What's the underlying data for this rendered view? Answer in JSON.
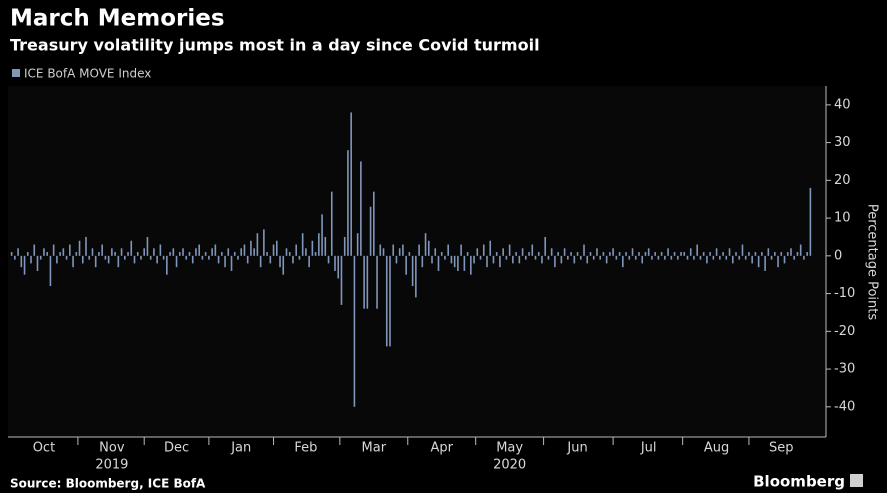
{
  "chart_data": {
    "type": "bar",
    "title": "March Memories",
    "subtitle": "Treasury volatility jumps most in a day since Covid turmoil",
    "y_label": "Percentage Points",
    "annotations": [
      "2019",
      "2020"
    ],
    "source": "Source: Bloomberg, ICE BofA",
    "brand": "Bloomberg",
    "ylim": [
      -48,
      45
    ],
    "yticks": [
      -40,
      -30,
      -20,
      -10,
      0,
      10,
      20,
      30,
      40
    ],
    "grid": false,
    "legend": "top-left",
    "categories": [
      null,
      null,
      null,
      null,
      null,
      null,
      null,
      null,
      null,
      null,
      "Oct",
      null,
      null,
      null,
      null,
      null,
      null,
      null,
      null,
      null,
      null,
      null,
      null,
      null,
      null,
      null,
      null,
      null,
      null,
      null,
      null,
      "Nov",
      null,
      null,
      null,
      null,
      null,
      null,
      null,
      null,
      null,
      null,
      null,
      null,
      null,
      null,
      null,
      null,
      null,
      null,
      null,
      "Dec",
      null,
      null,
      null,
      null,
      null,
      null,
      null,
      null,
      null,
      null,
      null,
      null,
      null,
      null,
      null,
      null,
      null,
      null,
      null,
      "Jan",
      null,
      null,
      null,
      null,
      null,
      null,
      null,
      null,
      null,
      null,
      null,
      null,
      null,
      null,
      null,
      null,
      null,
      null,
      null,
      "Feb",
      null,
      null,
      null,
      null,
      null,
      null,
      null,
      null,
      null,
      null,
      null,
      null,
      null,
      null,
      null,
      null,
      null,
      null,
      null,
      null,
      "Mar",
      null,
      null,
      null,
      null,
      null,
      null,
      null,
      null,
      null,
      null,
      null,
      null,
      null,
      null,
      null,
      null,
      null,
      null,
      null,
      null,
      "Apr",
      null,
      null,
      null,
      null,
      null,
      null,
      null,
      null,
      null,
      null,
      null,
      null,
      null,
      null,
      null,
      null,
      null,
      null,
      null,
      null,
      "May",
      null,
      null,
      null,
      null,
      null,
      null,
      null,
      null,
      null,
      null,
      null,
      null,
      null,
      null,
      null,
      null,
      null,
      null,
      null,
      null,
      "Jun",
      null,
      null,
      null,
      null,
      null,
      null,
      null,
      null,
      null,
      null,
      null,
      null,
      null,
      null,
      null,
      null,
      null,
      null,
      null,
      null,
      null,
      "Jul",
      null,
      null,
      null,
      null,
      null,
      null,
      null,
      null,
      null,
      null,
      null,
      null,
      null,
      null,
      null,
      null,
      null,
      null,
      null,
      null,
      "Aug",
      null,
      null,
      null,
      null,
      null,
      null,
      null,
      null,
      null,
      null,
      null,
      null,
      null,
      null,
      null,
      null,
      null,
      null,
      null,
      "Sep",
      null,
      null,
      null,
      null,
      null,
      null,
      null,
      null,
      null
    ],
    "series": [
      {
        "name": "ICE BofA MOVE Index",
        "color": "#8196bb",
        "values": [
          1,
          -1,
          2,
          -3,
          -5,
          1,
          -2,
          3,
          -4,
          -1,
          2,
          1,
          -8,
          3,
          -2,
          1,
          2,
          -1,
          3,
          -3,
          1,
          4,
          -2,
          5,
          -1,
          2,
          -3,
          1,
          3,
          -1,
          -2,
          2,
          1,
          -3,
          2,
          -1,
          1,
          4,
          -2,
          1,
          -1,
          2,
          5,
          -1,
          2,
          -2,
          3,
          -1,
          -5,
          1,
          2,
          -3,
          1,
          2,
          -1,
          1,
          -2,
          2,
          3,
          -1,
          1,
          -1,
          2,
          3,
          -2,
          1,
          -3,
          2,
          -4,
          1,
          -1,
          2,
          3,
          -2,
          4,
          2,
          6,
          -3,
          7,
          1,
          -2,
          3,
          4,
          -3,
          -5,
          2,
          1,
          -2,
          3,
          -1,
          6,
          2,
          -3,
          4,
          1,
          6,
          11,
          5,
          -2,
          17,
          -4,
          -6,
          -13,
          5,
          28,
          38,
          -40,
          6,
          25,
          -14,
          -14,
          13,
          17,
          -14,
          3,
          2,
          -24,
          -24,
          3,
          -2,
          2,
          3,
          -5,
          1,
          -8,
          -11,
          3,
          -3,
          6,
          4,
          -2,
          2,
          -4,
          1,
          -1,
          3,
          -2,
          -3,
          -4,
          3,
          -4,
          1,
          -5,
          -2,
          2,
          -1,
          3,
          -3,
          4,
          -2,
          1,
          -3,
          2,
          -1,
          3,
          -2,
          1,
          -2,
          2,
          -1,
          1,
          3,
          -1,
          1,
          -2,
          5,
          -1,
          2,
          -3,
          1,
          -2,
          2,
          -1,
          1,
          -2,
          1,
          -1,
          3,
          -2,
          1,
          -1,
          2,
          -1,
          1,
          -2,
          1,
          2,
          -1,
          1,
          -3,
          1,
          -1,
          2,
          -1,
          1,
          -2,
          1,
          2,
          -1,
          1,
          -1,
          1,
          -1,
          2,
          -1,
          1,
          -1,
          1,
          1,
          -1,
          2,
          -1,
          3,
          -1,
          1,
          -2,
          1,
          -1,
          2,
          -1,
          1,
          -1,
          2,
          -2,
          1,
          -1,
          3,
          -1,
          1,
          -2,
          1,
          -3,
          1,
          -4,
          2,
          -1,
          1,
          -3,
          1,
          -2,
          1,
          2,
          -1,
          1,
          3,
          -1,
          1,
          18
        ]
      }
    ]
  }
}
